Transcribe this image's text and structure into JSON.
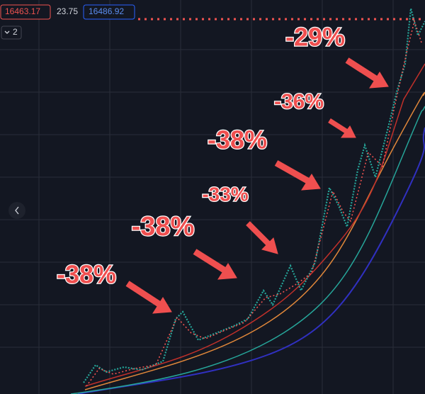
{
  "toolbar": {
    "bid": "16463.17",
    "spread": "23.75",
    "ask": "16486.92",
    "indicator_count": "2"
  },
  "annotations": [
    {
      "label": "-29%"
    },
    {
      "label": "-36%"
    },
    {
      "label": "-38%"
    },
    {
      "label": "-33%"
    },
    {
      "label": "-38%"
    },
    {
      "label": "-38%"
    }
  ]
}
